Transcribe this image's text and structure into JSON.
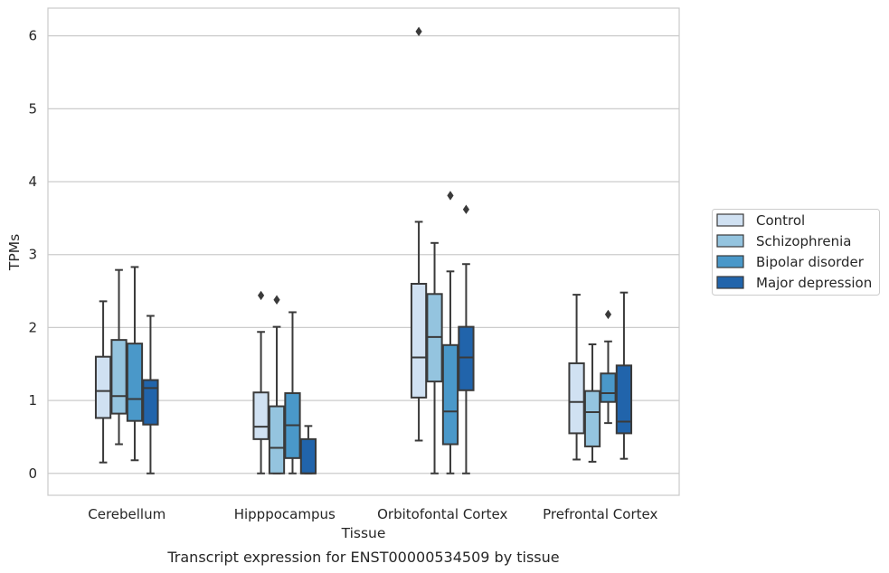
{
  "caption": "Transcript expression for ENST00000534509 by tissue",
  "chart_data": {
    "type": "box",
    "title": "",
    "xlabel": "Tissue",
    "ylabel": "TPMs",
    "ylim": [
      -0.3,
      6.38
    ],
    "yticks": [
      0,
      1,
      2,
      3,
      4,
      5,
      6
    ],
    "grid": "horizontal",
    "legend_position": "right",
    "categories": [
      "Cerebellum",
      "Hipppocampus",
      "Orbitofontal Cortex",
      "Prefrontal Cortex"
    ],
    "series": [
      {
        "name": "Control",
        "color": "#d0e1f2",
        "boxes": [
          {
            "whislo": 0.15,
            "q1": 0.76,
            "med": 1.13,
            "q3": 1.6,
            "whishi": 2.36,
            "fliers": []
          },
          {
            "whislo": 0.0,
            "q1": 0.47,
            "med": 0.64,
            "q3": 1.11,
            "whishi": 1.94,
            "fliers": [
              2.44
            ]
          },
          {
            "whislo": 0.45,
            "q1": 1.04,
            "med": 1.59,
            "q3": 2.6,
            "whishi": 3.45,
            "fliers": [
              6.06
            ]
          },
          {
            "whislo": 0.19,
            "q1": 0.55,
            "med": 0.98,
            "q3": 1.51,
            "whishi": 2.45,
            "fliers": []
          }
        ]
      },
      {
        "name": "Schizophrenia",
        "color": "#94c4df",
        "boxes": [
          {
            "whislo": 0.4,
            "q1": 0.82,
            "med": 1.06,
            "q3": 1.83,
            "whishi": 2.79,
            "fliers": []
          },
          {
            "whislo": 0.0,
            "q1": 0.0,
            "med": 0.35,
            "q3": 0.92,
            "whishi": 2.01,
            "fliers": [
              2.38
            ]
          },
          {
            "whislo": 0.0,
            "q1": 1.26,
            "med": 1.87,
            "q3": 2.46,
            "whishi": 3.16,
            "fliers": []
          },
          {
            "whislo": 0.16,
            "q1": 0.37,
            "med": 0.84,
            "q3": 1.13,
            "whishi": 1.77,
            "fliers": []
          }
        ]
      },
      {
        "name": "Bipolar disorder",
        "color": "#4a98c9",
        "boxes": [
          {
            "whislo": 0.18,
            "q1": 0.72,
            "med": 1.02,
            "q3": 1.78,
            "whishi": 2.83,
            "fliers": []
          },
          {
            "whislo": 0.0,
            "q1": 0.21,
            "med": 0.66,
            "q3": 1.1,
            "whishi": 2.21,
            "fliers": []
          },
          {
            "whislo": 0.0,
            "q1": 0.4,
            "med": 0.85,
            "q3": 1.76,
            "whishi": 2.77,
            "fliers": [
              3.81
            ]
          },
          {
            "whislo": 0.69,
            "q1": 0.98,
            "med": 1.1,
            "q3": 1.37,
            "whishi": 1.81,
            "fliers": [
              2.18
            ]
          }
        ]
      },
      {
        "name": "Major depression",
        "color": "#2164ab",
        "boxes": [
          {
            "whislo": 0.0,
            "q1": 0.67,
            "med": 1.17,
            "q3": 1.28,
            "whishi": 2.16,
            "fliers": []
          },
          {
            "whislo": 0.0,
            "q1": 0.0,
            "med": 0.0,
            "q3": 0.47,
            "whishi": 0.65,
            "fliers": []
          },
          {
            "whislo": 0.0,
            "q1": 1.14,
            "med": 1.59,
            "q3": 2.01,
            "whishi": 2.87,
            "fliers": [
              3.62
            ]
          },
          {
            "whislo": 0.2,
            "q1": 0.55,
            "med": 0.71,
            "q3": 1.48,
            "whishi": 2.48,
            "fliers": []
          }
        ]
      }
    ]
  }
}
